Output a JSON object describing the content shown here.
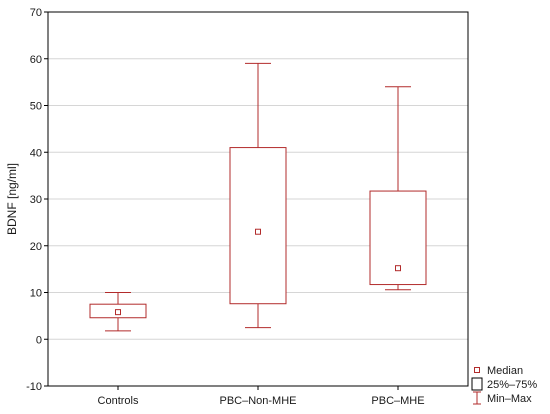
{
  "chart_data": {
    "type": "boxplot",
    "title": "",
    "xlabel": "",
    "ylabel": "BDNF [ng/ml]",
    "ylim": [
      -10,
      70
    ],
    "yticks": [
      -10,
      0,
      10,
      20,
      30,
      40,
      50,
      60,
      70
    ],
    "grid": true,
    "legend_position": "bottom-right, outside plot",
    "categories": [
      "Controls",
      "PBC–Non-MHE",
      "PBC–MHE"
    ],
    "boxes": [
      {
        "category": "Controls",
        "min": 1.8,
        "q1": 4.6,
        "median": 5.8,
        "q3": 7.5,
        "max": 10.0
      },
      {
        "category": "PBC–Non-MHE",
        "min": 2.5,
        "q1": 7.6,
        "median": 23.0,
        "q3": 41.0,
        "max": 59.0
      },
      {
        "category": "PBC–MHE",
        "min": 10.6,
        "q1": 11.7,
        "median": 15.2,
        "q3": 31.7,
        "max": 54.0
      }
    ],
    "legend": [
      {
        "symbol": "median",
        "label": "Median"
      },
      {
        "symbol": "box",
        "label": "25%–75%"
      },
      {
        "symbol": "whisker",
        "label": "Min–Max"
      }
    ],
    "colors": {
      "box": "#b22b2b",
      "grid": "#d6d6d6",
      "axis": "#000000"
    }
  }
}
